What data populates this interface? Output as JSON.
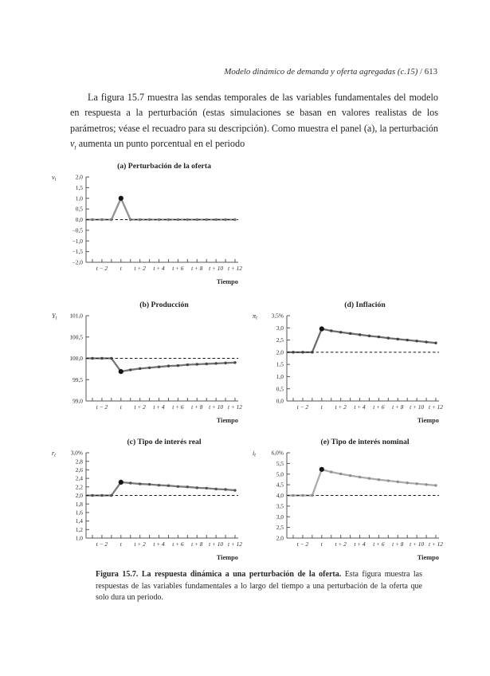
{
  "page": {
    "running_head": "Modelo dinámico de demanda y oferta agregadas (c.15)",
    "page_number": " / 613"
  },
  "paragraph": {
    "part1": "La figura 15.7 muestra las sendas temporales de las variables fundamentales del modelo en respuesta a la perturbación (estas simulaciones se basan en valores realistas de los parámetros; véase el recuadro para su descripción). Como muestra el panel (a), la perturbación ",
    "var_base": "v",
    "var_sub": "t",
    "part2": " aumenta un punto porcentual en el periodo"
  },
  "caption": {
    "bold": "Figura 15.7. La respuesta dinámica a una perturbación de la oferta.",
    "rest": " Esta figura muestra las respuestas de las variables fundamentales a lo largo del tiempo a una perturbación de la oferta que solo dura un periodo."
  },
  "chart_data": [
    {
      "id": "a",
      "type": "line",
      "title": "(a) Perturbación de la oferta",
      "ylabel": {
        "base": "v",
        "sub": "t"
      },
      "xlabel": "Tiempo",
      "x": [
        -3,
        -2,
        -1,
        0,
        1,
        2,
        3,
        4,
        5,
        6,
        7,
        8,
        9,
        10,
        11,
        12
      ],
      "values": [
        0,
        0,
        0,
        1,
        0,
        0,
        0,
        0,
        0,
        0,
        0,
        0,
        0,
        0,
        0,
        0
      ],
      "baseline": 0,
      "xlim": [
        -3,
        12
      ],
      "ylim": [
        -2,
        2
      ],
      "ytick_values": [
        2,
        1.5,
        1,
        0.5,
        0,
        -0.5,
        -1,
        -1.5,
        -2
      ],
      "ytick_labels": [
        "2,0",
        "1,5",
        "1,0",
        "0,5",
        "0,0",
        "−0,5",
        "−1,0",
        "−1,5",
        "−2,0"
      ],
      "xtick_positions": [
        -2,
        0,
        2,
        4,
        6,
        8,
        10,
        12
      ],
      "xtick_labels": [
        "t − 2",
        "t",
        "t + 2",
        "t + 4",
        "t + 6",
        "t + 8",
        "t + 10",
        "t + 12"
      ],
      "line_color": "#919191",
      "marker_color": "#757575",
      "highlight_index": 3,
      "highlight_color": "#141414"
    },
    {
      "id": "b",
      "type": "line",
      "title": "(b) Producción",
      "ylabel": {
        "base": "Y",
        "sub": "t"
      },
      "xlabel": "Tiempo",
      "x": [
        -3,
        -2,
        -1,
        0,
        1,
        2,
        3,
        4,
        5,
        6,
        7,
        8,
        9,
        10,
        11,
        12
      ],
      "values": [
        100,
        100,
        100,
        99.69,
        99.73,
        99.76,
        99.78,
        99.8,
        99.82,
        99.83,
        99.85,
        99.86,
        99.87,
        99.88,
        99.89,
        99.9
      ],
      "baseline": 100,
      "xlim": [
        -3,
        12
      ],
      "ylim": [
        99,
        101
      ],
      "ytick_values": [
        101,
        100.5,
        100,
        99.5,
        99
      ],
      "ytick_labels": [
        "101,0",
        "100,5",
        "100,0",
        "99,5",
        "99,0"
      ],
      "xtick_positions": [
        -2,
        0,
        2,
        4,
        6,
        8,
        10,
        12
      ],
      "xtick_labels": [
        "t − 2",
        "t",
        "t + 2",
        "t + 4",
        "t + 6",
        "t + 8",
        "t + 10",
        "t + 12"
      ],
      "line_color": "#757575",
      "marker_color": "#454545",
      "highlight_index": 3,
      "highlight_color": "#141414"
    },
    {
      "id": "d",
      "type": "line",
      "title": "(d) Inflación",
      "ylabel": {
        "base": "π",
        "sub": "t"
      },
      "xlabel": "Tiempo",
      "x": [
        -3,
        -2,
        -1,
        0,
        1,
        2,
        3,
        4,
        5,
        6,
        7,
        8,
        9,
        10,
        11,
        12
      ],
      "values": [
        2,
        2,
        2,
        2.96,
        2.88,
        2.82,
        2.77,
        2.72,
        2.67,
        2.63,
        2.58,
        2.54,
        2.5,
        2.46,
        2.42,
        2.38
      ],
      "baseline": 2,
      "xlim": [
        -3,
        12
      ],
      "ylim": [
        0,
        3.5
      ],
      "ytick_values": [
        3.5,
        3,
        2.5,
        2,
        1.5,
        1,
        0.5,
        0
      ],
      "ytick_labels": [
        "3,5%",
        "3,0",
        "2,5",
        "2,0",
        "1,5",
        "1,0",
        "0,5",
        "0,0"
      ],
      "xtick_positions": [
        -2,
        0,
        2,
        4,
        6,
        8,
        10,
        12
      ],
      "xtick_labels": [
        "t − 2",
        "t",
        "t + 2",
        "t + 4",
        "t + 6",
        "t + 8",
        "t + 10",
        "t + 12"
      ],
      "line_color": "#6d6d6d",
      "marker_color": "#404040",
      "highlight_index": 3,
      "highlight_color": "#141414"
    },
    {
      "id": "c",
      "type": "line",
      "title": "(c) Tipo de interés real",
      "ylabel": {
        "base": "r",
        "sub": "t"
      },
      "xlabel": "Tiempo",
      "x": [
        -3,
        -2,
        -1,
        0,
        1,
        2,
        3,
        4,
        5,
        6,
        7,
        8,
        9,
        10,
        11,
        12
      ],
      "values": [
        2,
        2,
        2,
        2.31,
        2.29,
        2.27,
        2.26,
        2.24,
        2.23,
        2.21,
        2.2,
        2.18,
        2.17,
        2.15,
        2.14,
        2.12
      ],
      "baseline": 2,
      "xlim": [
        -3,
        12
      ],
      "ylim": [
        1,
        3
      ],
      "ytick_values": [
        3,
        2.8,
        2.6,
        2.4,
        2.2,
        2,
        1.8,
        1.6,
        1.4,
        1.2,
        1
      ],
      "ytick_labels": [
        "3,0%",
        "2,8",
        "2,6",
        "2,4",
        "2,2",
        "2,0",
        "1,8",
        "1,6",
        "1,4",
        "1,2",
        "1,0"
      ],
      "xtick_positions": [
        -2,
        0,
        2,
        4,
        6,
        8,
        10,
        12
      ],
      "xtick_labels": [
        "t − 2",
        "t",
        "t + 2",
        "t + 4",
        "t + 6",
        "t + 8",
        "t + 10",
        "t + 12"
      ],
      "line_color": "#7a7a7a",
      "marker_color": "#505050",
      "highlight_index": 3,
      "highlight_color": "#141414"
    },
    {
      "id": "e",
      "type": "line",
      "title": "(e) Tipo de interés nominal",
      "ylabel": {
        "base": "i",
        "sub": "t"
      },
      "xlabel": "Tiempo",
      "x": [
        -3,
        -2,
        -1,
        0,
        1,
        2,
        3,
        4,
        5,
        6,
        7,
        8,
        9,
        10,
        11,
        12
      ],
      "values": [
        4,
        4,
        4,
        5.22,
        5.1,
        5.01,
        4.93,
        4.86,
        4.8,
        4.74,
        4.69,
        4.64,
        4.59,
        4.55,
        4.51,
        4.47
      ],
      "baseline": 4,
      "xlim": [
        -3,
        12
      ],
      "ylim": [
        2,
        6
      ],
      "ytick_values": [
        6,
        5.5,
        5,
        4.5,
        4,
        3.5,
        3,
        2.5,
        2
      ],
      "ytick_labels": [
        "6,0%",
        "5,5",
        "5,0",
        "4,5",
        "4,0",
        "3,5",
        "3,0",
        "2,5",
        "2,0"
      ],
      "xtick_positions": [
        -2,
        0,
        2,
        4,
        6,
        8,
        10,
        12
      ],
      "xtick_labels": [
        "t − 2",
        "t",
        "t + 2",
        "t + 4",
        "t + 6",
        "t + 8",
        "t + 10",
        "t + 12"
      ],
      "line_color": "#ababab",
      "marker_color": "#8e8e8e",
      "highlight_index": 3,
      "highlight_color": "#141414"
    }
  ]
}
